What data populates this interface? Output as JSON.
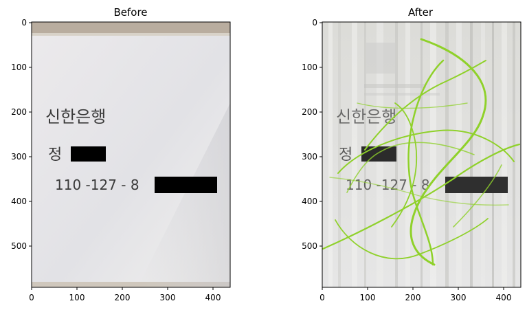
{
  "panels": [
    {
      "title": "Before",
      "x_ticks": [
        "0",
        "100",
        "200",
        "300",
        "400"
      ],
      "y_ticks": [
        "0",
        "100",
        "200",
        "300",
        "400",
        "500"
      ],
      "handwriting": {
        "bank": "신한은행",
        "name_prefix": "정",
        "account": "110 -127 - 8"
      }
    },
    {
      "title": "After",
      "x_ticks": [
        "0",
        "100",
        "200",
        "300",
        "400"
      ],
      "y_ticks": [
        "0",
        "100",
        "200",
        "300",
        "400",
        "500"
      ],
      "handwriting": {
        "bank": "신한은행",
        "name_prefix": "정",
        "account": "110 -127 - 8"
      }
    }
  ],
  "colors": {
    "paper": "#e8e8ea",
    "redaction": "#000000",
    "scribble": "#8fd12a",
    "frame_top": "#b7ab9c"
  }
}
